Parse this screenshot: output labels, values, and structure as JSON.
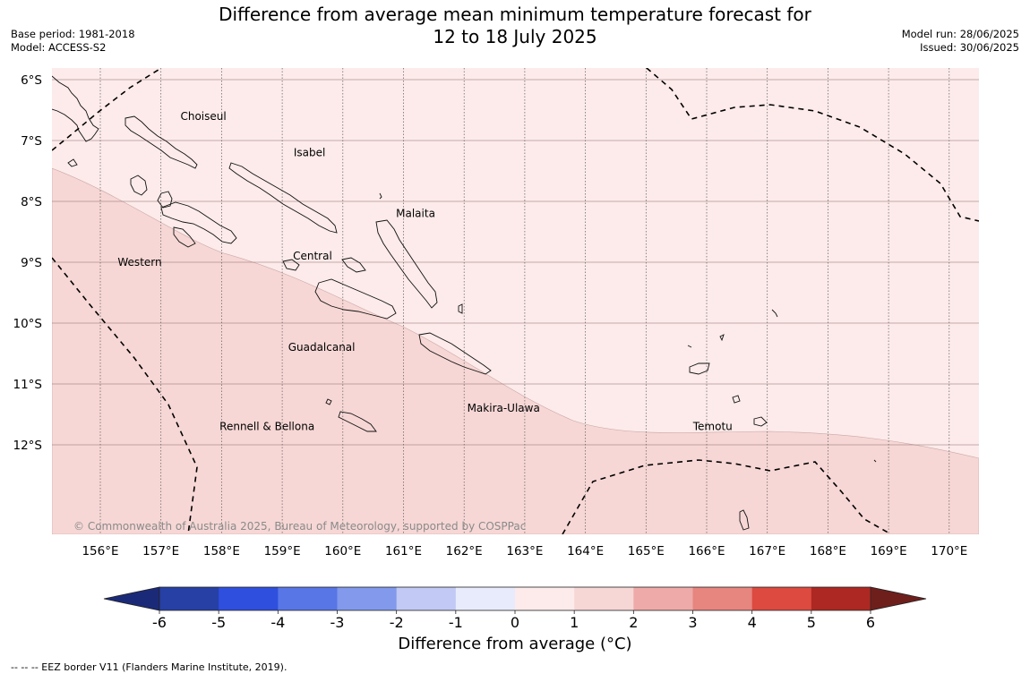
{
  "header": {
    "title_line1": "Difference from average mean minimum temperature forecast for",
    "title_line2": "12 to 18 July 2025",
    "base_period": "Base period: 1981-2018",
    "model": "Model: ACCESS-S2",
    "model_run": "Model run: 28/06/2025",
    "issued": "Issued: 30/06/2025"
  },
  "map": {
    "lat_labels": [
      "6°S",
      "7°S",
      "8°S",
      "9°S",
      "10°S",
      "11°S",
      "12°S"
    ],
    "lon_labels": [
      "156°E",
      "157°E",
      "158°E",
      "159°E",
      "160°E",
      "161°E",
      "162°E",
      "163°E",
      "164°E",
      "165°E",
      "166°E",
      "167°E",
      "168°E",
      "169°E",
      "170°E"
    ],
    "region_labels": [
      {
        "name": "Choiseul",
        "lon": 157.7,
        "lat": -6.6
      },
      {
        "name": "Isabel",
        "lon": 159.45,
        "lat": -7.2
      },
      {
        "name": "Malaita",
        "lon": 161.2,
        "lat": -8.2
      },
      {
        "name": "Western",
        "lon": 156.65,
        "lat": -9.0
      },
      {
        "name": "Central",
        "lon": 159.5,
        "lat": -8.9
      },
      {
        "name": "Guadalcanal",
        "lon": 159.65,
        "lat": -10.4
      },
      {
        "name": "Makira-Ulawa",
        "lon": 162.65,
        "lat": -11.4
      },
      {
        "name": "Rennell & Bellona",
        "lon": 158.75,
        "lat": -11.7
      },
      {
        "name": "Temotu",
        "lon": 166.1,
        "lat": -11.7
      }
    ],
    "copyright": "© Commonwealth of Australia 2025, Bureau of Meteorology, supported by COSPPac",
    "fill_colors": {
      "band_0_1": "#fcebea",
      "band_1_2": "#f6d7d5"
    }
  },
  "colorbar": {
    "ticks": [
      "-6",
      "-5",
      "-4",
      "-3",
      "-2",
      "-1",
      "0",
      "1",
      "2",
      "3",
      "4",
      "5",
      "6"
    ],
    "colors": [
      "#2640a6",
      "#2f4fde",
      "#5876e6",
      "#8299ec",
      "#c1c9f4",
      "#e8ebfb",
      "#fcebea",
      "#f6d7d5",
      "#eeaaa8",
      "#e7857f",
      "#dc4a40",
      "#ad2822"
    ],
    "under_color": "#1b2a78",
    "over_color": "#6e1f1c",
    "label": "Difference from average (°C)"
  },
  "footnote": "-- -- -- EEZ border V11 (Flanders Marine Institute, 2019)."
}
